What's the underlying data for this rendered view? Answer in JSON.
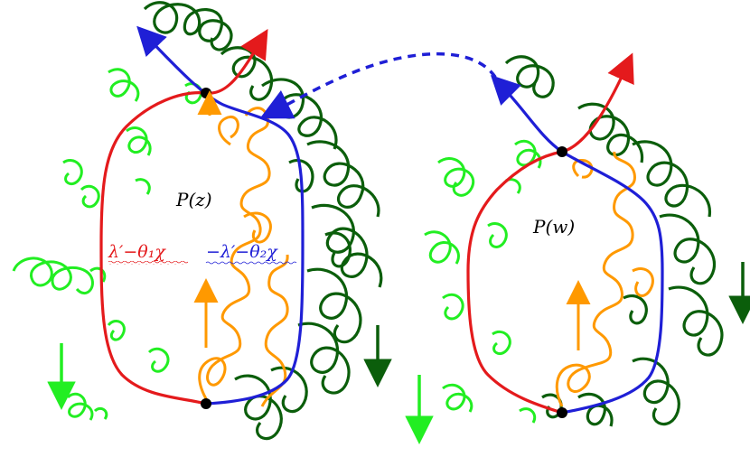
{
  "labels": {
    "region_left": "P(z)",
    "region_right": "P(w)",
    "left_boundary": "λ′−θ₁χ",
    "right_boundary": "−λ′−θ₂χ"
  },
  "colors": {
    "red_curve": "#e41a1c",
    "blue_curve": "#1f1fd6",
    "orange_curve": "#ff9900",
    "light_green_loops": "#22ee22",
    "dark_green_loops": "#0b5e0b",
    "marked_point": "#000000",
    "background": "#ffffff"
  },
  "icons": {
    "arrow_up": "arrow-up-icon",
    "arrow_down": "arrow-down-icon",
    "dashed_connector": "dashed-arc-arrow"
  }
}
